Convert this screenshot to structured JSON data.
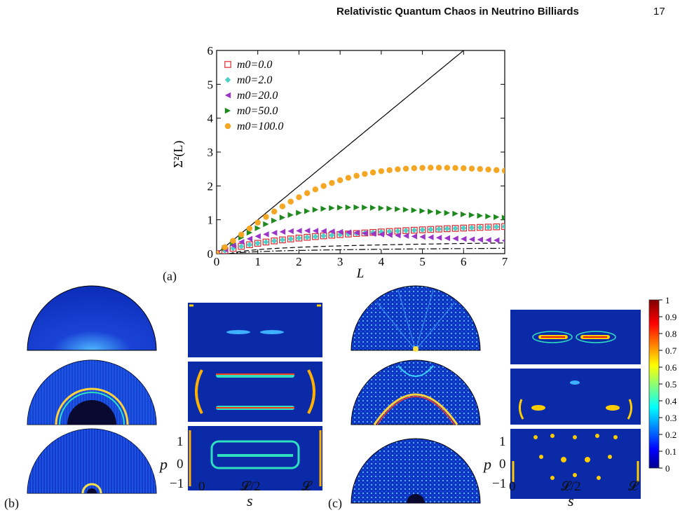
{
  "header": {
    "title": "Relativistic Quantum Chaos in Neutrino Billiards",
    "page": "17"
  },
  "panel_labels": {
    "a": "(a)",
    "b": "(b)",
    "c": "(c)"
  },
  "chart_data": {
    "type": "scatter",
    "xlabel": "L",
    "ylabel": "Σ²(L)",
    "xlim": [
      0,
      7
    ],
    "ylim": [
      0,
      6
    ],
    "xticks": [
      "0",
      "1",
      "2",
      "3",
      "4",
      "5",
      "6",
      "7"
    ],
    "yticks": [
      "0",
      "1",
      "2",
      "3",
      "4",
      "5",
      "6"
    ],
    "legend_position": "top-left",
    "series": [
      {
        "name": "m0=0.0",
        "marker": "open-square",
        "color": "#e0282e",
        "a": 0.1255,
        "b": 0.6
      },
      {
        "name": "m0=2.0",
        "marker": "diamond",
        "color": "#4fd0c8",
        "a": 0.1255,
        "b": 0.6
      },
      {
        "name": "m0=20.0",
        "marker": "triangle-left",
        "color": "#9a35c8",
        "a": 0.62,
        "b": 0.21
      },
      {
        "name": "m0=50.0",
        "marker": "triangle-right",
        "color": "#1e8a1e",
        "a": 0.82,
        "b": 0.09
      },
      {
        "name": "m0=100.0",
        "marker": "circle",
        "color": "#f5a623",
        "a": 0.95,
        "b": 0.035
      }
    ],
    "reference_lines": [
      {
        "kind": "poisson",
        "style": "solid",
        "color": "#000000"
      },
      {
        "kind": "goe",
        "style": "dashed",
        "color": "#000000"
      },
      {
        "kind": "gue",
        "style": "dash-dot",
        "color": "#000000"
      }
    ]
  },
  "phase_axes": {
    "p_label": "p",
    "p_ticks": [
      "1",
      "0",
      "−1"
    ],
    "s_label": "s",
    "s_ticks": [
      "0",
      "𝓛/2",
      "𝓛"
    ]
  },
  "colorbar": {
    "ticks": [
      "1",
      "0.9",
      "0.8",
      "0.7",
      "0.6",
      "0.5",
      "0.4",
      "0.3",
      "0.2",
      "0.1",
      "0"
    ]
  }
}
